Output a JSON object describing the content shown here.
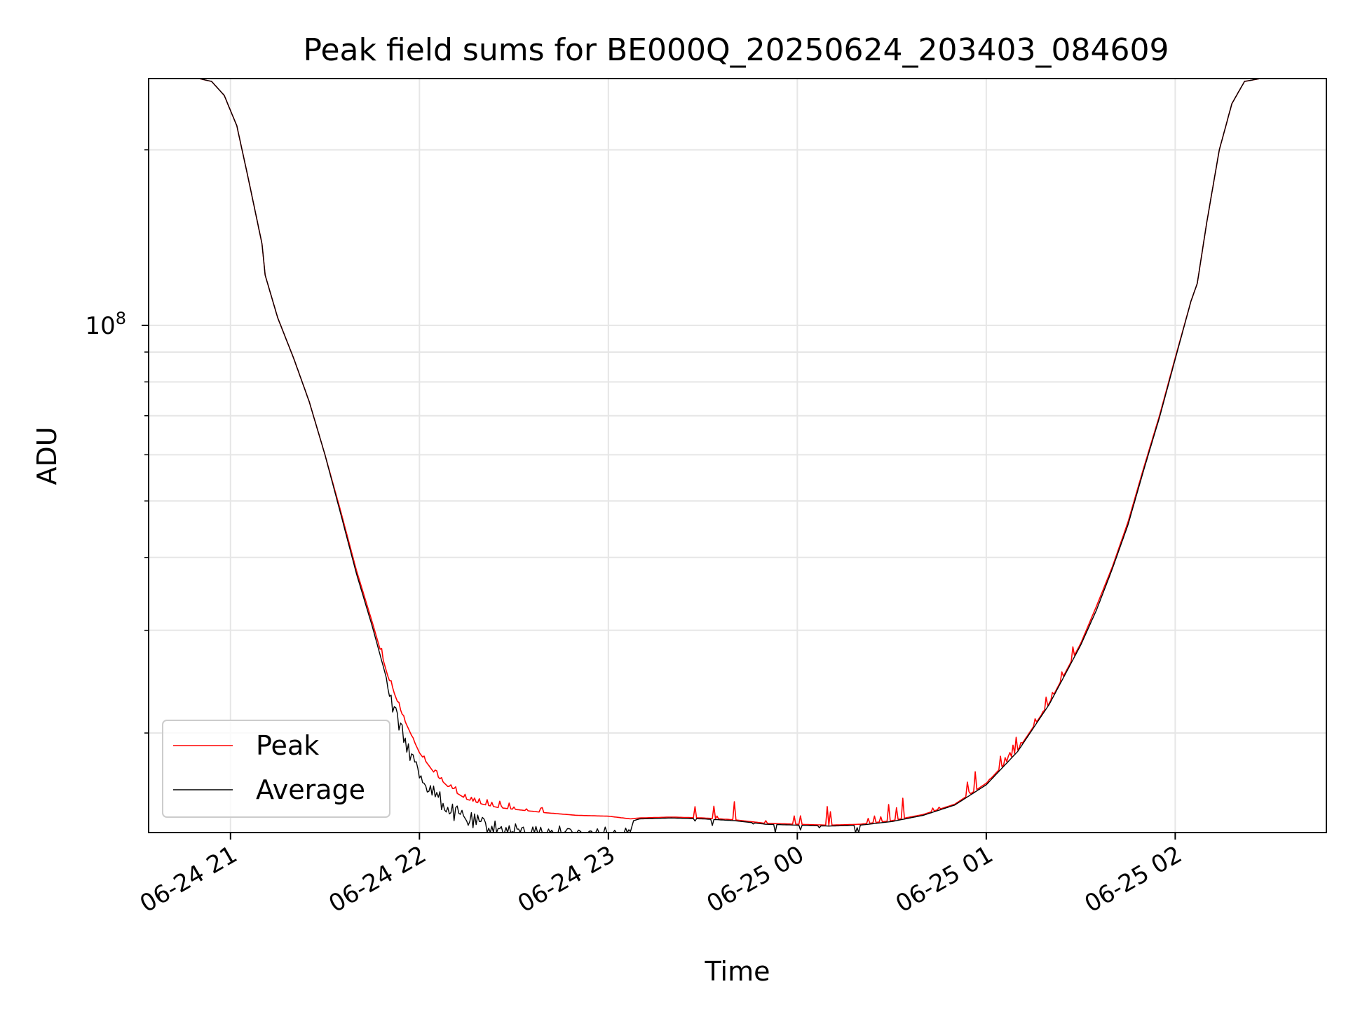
{
  "chart_data": {
    "type": "line",
    "title": "Peak field sums for BE000Q_20250624_203403_084609",
    "xlabel": "Time",
    "ylabel": "ADU",
    "y_scale": "log",
    "ylim": [
      13500000,
      265000000
    ],
    "xlim": [
      "2025-06-24 20:34",
      "2025-06-25 02:48"
    ],
    "x_ticks": [
      "06-24 21",
      "06-24 22",
      "06-24 23",
      "06-25 00",
      "06-25 01",
      "06-25 02"
    ],
    "x_tick_times": [
      "2025-06-24 21:00",
      "2025-06-24 22:00",
      "2025-06-24 23:00",
      "2025-06-25 00:00",
      "2025-06-25 01:00",
      "2025-06-25 02:00"
    ],
    "y_ticks_major": [
      {
        "value": 100000000,
        "base": "10",
        "exponent": "8"
      }
    ],
    "y_ticks_minor": [
      20000000,
      30000000,
      40000000,
      50000000,
      60000000,
      70000000,
      80000000,
      90000000,
      200000000
    ],
    "grid": true,
    "legend_position": "lower-left",
    "series": [
      {
        "name": "Peak",
        "color": "#ff0000",
        "x": [
          "2025-06-24 20:44",
          "2025-06-24 20:50",
          "2025-06-24 20:54",
          "2025-06-24 20:58",
          "2025-06-24 21:02",
          "2025-06-24 21:06",
          "2025-06-24 21:10",
          "2025-06-24 21:11",
          "2025-06-24 21:15",
          "2025-06-24 21:20",
          "2025-06-24 21:25",
          "2025-06-24 21:30",
          "2025-06-24 21:35",
          "2025-06-24 21:40",
          "2025-06-24 21:45",
          "2025-06-24 21:50",
          "2025-06-24 21:55",
          "2025-06-24 22:00",
          "2025-06-24 22:05",
          "2025-06-24 22:10",
          "2025-06-24 22:15",
          "2025-06-24 22:20",
          "2025-06-24 22:25",
          "2025-06-24 22:30",
          "2025-06-24 22:40",
          "2025-06-24 22:50",
          "2025-06-24 23:00",
          "2025-06-24 23:07",
          "2025-06-24 23:10",
          "2025-06-24 23:20",
          "2025-06-24 23:30",
          "2025-06-24 23:40",
          "2025-06-24 23:50",
          "2025-06-25 00:00",
          "2025-06-25 00:10",
          "2025-06-25 00:20",
          "2025-06-25 00:30",
          "2025-06-25 00:40",
          "2025-06-25 00:50",
          "2025-06-25 01:00",
          "2025-06-25 01:10",
          "2025-06-25 01:20",
          "2025-06-25 01:30",
          "2025-06-25 01:35",
          "2025-06-25 01:40",
          "2025-06-25 01:45",
          "2025-06-25 01:50",
          "2025-06-25 01:55",
          "2025-06-25 02:00",
          "2025-06-25 02:05",
          "2025-06-25 02:07",
          "2025-06-25 02:10",
          "2025-06-25 02:14",
          "2025-06-25 02:18",
          "2025-06-25 02:22",
          "2025-06-25 02:27"
        ],
        "y": [
          265000000,
          265000000,
          262000000,
          248000000,
          220000000,
          175000000,
          138000000,
          122000000,
          103000000,
          88000000,
          74000000,
          60000000,
          48000000,
          38000000,
          31000000,
          25000000,
          21200000,
          18500000,
          17000000,
          16000000,
          15400000,
          15100000,
          14900000,
          14800000,
          14600000,
          14450000,
          14400000,
          14250000,
          14300000,
          14350000,
          14300000,
          14200000,
          14000000,
          13950000,
          13900000,
          13950000,
          14150000,
          14500000,
          15100000,
          16400000,
          18700000,
          22500000,
          28500000,
          33000000,
          38500000,
          46000000,
          57000000,
          70000000,
          88000000,
          110000000,
          118000000,
          150000000,
          200000000,
          240000000,
          262000000,
          265000000
        ]
      },
      {
        "name": "Average",
        "color": "#000000",
        "x": [
          "2025-06-24 20:44",
          "2025-06-24 20:50",
          "2025-06-24 20:54",
          "2025-06-24 20:58",
          "2025-06-24 21:02",
          "2025-06-24 21:06",
          "2025-06-24 21:10",
          "2025-06-24 21:11",
          "2025-06-24 21:15",
          "2025-06-24 21:20",
          "2025-06-24 21:25",
          "2025-06-24 21:30",
          "2025-06-24 21:35",
          "2025-06-24 21:40",
          "2025-06-24 21:45",
          "2025-06-24 21:50",
          "2025-06-24 21:55",
          "2025-06-24 22:00",
          "2025-06-24 22:05",
          "2025-06-24 22:10",
          "2025-06-24 22:15",
          "2025-06-24 22:20",
          "2025-06-24 22:25",
          "2025-06-24 22:30",
          "2025-06-24 22:40",
          "2025-06-24 22:50",
          "2025-06-24 23:00",
          "2025-06-24 23:06",
          "2025-06-24 23:07",
          "2025-06-24 23:08",
          "2025-06-24 23:10",
          "2025-06-24 23:20",
          "2025-06-24 23:30",
          "2025-06-24 23:40",
          "2025-06-24 23:50",
          "2025-06-25 00:00",
          "2025-06-25 00:10",
          "2025-06-25 00:20",
          "2025-06-25 00:30",
          "2025-06-25 00:40",
          "2025-06-25 00:50",
          "2025-06-25 01:00",
          "2025-06-25 01:10",
          "2025-06-25 01:20",
          "2025-06-25 01:30",
          "2025-06-25 01:35",
          "2025-06-25 01:40",
          "2025-06-25 01:45",
          "2025-06-25 01:50",
          "2025-06-25 01:55",
          "2025-06-25 02:00",
          "2025-06-25 02:05",
          "2025-06-25 02:07",
          "2025-06-25 02:10",
          "2025-06-25 02:14",
          "2025-06-25 02:18",
          "2025-06-25 02:22",
          "2025-06-25 02:27"
        ],
        "y": [
          265000000,
          265000000,
          262000000,
          248000000,
          220000000,
          175000000,
          138000000,
          122000000,
          103000000,
          88000000,
          74000000,
          60000000,
          47500000,
          37500000,
          30500000,
          24300000,
          20300000,
          17600000,
          16200000,
          15200000,
          14700000,
          14400000,
          14150000,
          14000000,
          13900000,
          13850000,
          13800000,
          13750000,
          13550000,
          14150000,
          14250000,
          14300000,
          14250000,
          14150000,
          13950000,
          13900000,
          13850000,
          13900000,
          14100000,
          14450000,
          15050000,
          16300000,
          18600000,
          22400000,
          28300000,
          32500000,
          38200000,
          45500000,
          56500000,
          69500000,
          87500000,
          110000000,
          118000000,
          150000000,
          200000000,
          240000000,
          262000000,
          265000000
        ]
      }
    ]
  }
}
